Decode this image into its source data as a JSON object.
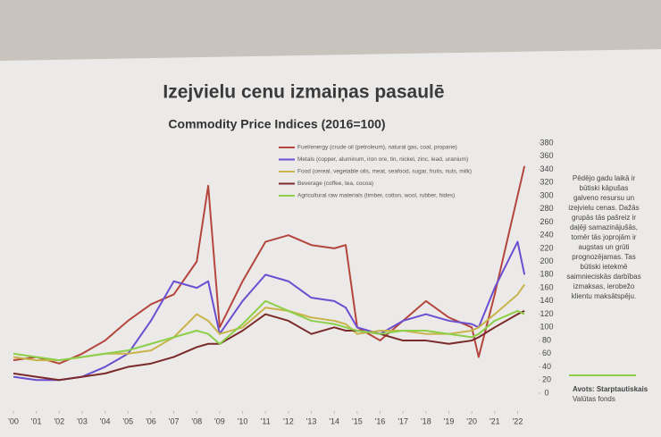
{
  "title": "Izejvielu cenu izmaiņas pasaulē",
  "chart_data": {
    "type": "line",
    "title": "Commodity Price Indices (2016=100)",
    "x": [
      2000,
      2001,
      2002,
      2003,
      2004,
      2005,
      2006,
      2007,
      2008,
      2008.5,
      2009,
      2010,
      2011,
      2012,
      2013,
      2014,
      2014.5,
      2015,
      2016,
      2017,
      2018,
      2019,
      2020,
      2020.3,
      2021,
      2022,
      2022.3
    ],
    "series": [
      {
        "name": "Fuel/energy (crude oil (petroleum), natural gas, coal, propane)",
        "color": "#b5463e",
        "values": [
          50,
          55,
          45,
          60,
          80,
          110,
          135,
          150,
          200,
          315,
          100,
          170,
          230,
          240,
          225,
          220,
          225,
          100,
          80,
          110,
          140,
          115,
          100,
          55,
          150,
          300,
          345
        ]
      },
      {
        "name": "Metals (copper, aluminum, iron ore, tin, nickel, zinc, lead, uranium)",
        "color": "#6b4fd0",
        "values": [
          25,
          20,
          20,
          25,
          40,
          60,
          110,
          170,
          160,
          170,
          90,
          140,
          180,
          170,
          145,
          140,
          130,
          100,
          90,
          110,
          120,
          110,
          105,
          100,
          160,
          230,
          180
        ]
      },
      {
        "name": "Food (cereal, vegetable oils, meat, seafood, sugar, fruits, nuts, milk)",
        "color": "#c8b44a",
        "values": [
          55,
          50,
          50,
          55,
          60,
          60,
          65,
          85,
          120,
          110,
          90,
          100,
          130,
          125,
          115,
          110,
          105,
          90,
          95,
          95,
          90,
          90,
          95,
          100,
          120,
          150,
          165
        ]
      },
      {
        "name": "Beverage (coffee, tea, cocoa)",
        "color": "#7a2a2a",
        "values": [
          30,
          25,
          20,
          25,
          30,
          40,
          45,
          55,
          70,
          75,
          75,
          95,
          120,
          110,
          90,
          100,
          95,
          95,
          90,
          80,
          80,
          75,
          80,
          85,
          100,
          120,
          125
        ]
      },
      {
        "name": "Agricultural raw materials (timber, cotton, wool, rubber, hides)",
        "color": "#8ccf4a",
        "values": [
          60,
          55,
          50,
          55,
          60,
          65,
          75,
          85,
          95,
          90,
          75,
          105,
          140,
          125,
          110,
          105,
          100,
          95,
          90,
          95,
          95,
          90,
          85,
          90,
          110,
          125,
          120
        ]
      }
    ],
    "xlim": [
      2000,
      2022.8
    ],
    "xticks": [
      {
        "value": 2000,
        "label": "'00"
      },
      {
        "value": 2001,
        "label": "'01"
      },
      {
        "value": 2002,
        "label": "'02"
      },
      {
        "value": 2003,
        "label": "'03"
      },
      {
        "value": 2004,
        "label": "'04"
      },
      {
        "value": 2005,
        "label": "'05"
      },
      {
        "value": 2006,
        "label": "'06"
      },
      {
        "value": 2007,
        "label": "'07"
      },
      {
        "value": 2008,
        "label": "'08"
      },
      {
        "value": 2009,
        "label": "'09"
      },
      {
        "value": 2010,
        "label": "'10"
      },
      {
        "value": 2011,
        "label": "'11"
      },
      {
        "value": 2012,
        "label": "'12"
      },
      {
        "value": 2013,
        "label": "'13"
      },
      {
        "value": 2014,
        "label": "'14"
      },
      {
        "value": 2015,
        "label": "'15"
      },
      {
        "value": 2016,
        "label": "'16"
      },
      {
        "value": 2017,
        "label": "'17"
      },
      {
        "value": 2018,
        "label": "'18"
      },
      {
        "value": 2019,
        "label": "'19"
      },
      {
        "value": 2020,
        "label": "'20"
      },
      {
        "value": 2021,
        "label": "'21"
      },
      {
        "value": 2022,
        "label": "'22"
      }
    ],
    "ylim": [
      0,
      380
    ],
    "yticks": [
      0,
      20,
      40,
      60,
      80,
      100,
      120,
      140,
      160,
      180,
      200,
      220,
      240,
      260,
      280,
      300,
      320,
      340,
      360,
      380
    ]
  },
  "sidebar": {
    "lines": [
      "Pēdējo gadu laikā ir",
      "būtiski kāpušas",
      "galveno resursu un",
      "izejvielu cenas. Dažās",
      "grupās tās pašreiz ir",
      "daļēji samazinājušās,",
      "tomēr tās joprojām ir",
      "augstas un grūti",
      "prognozējamas. Tas",
      "būtiski ietekmē",
      "saimnieciskās darbības",
      "izmaksas, ierobežo",
      "klientu maksātspēju."
    ],
    "source": [
      "Avots: Starptautiskais",
      "Valūtas fonds"
    ]
  }
}
